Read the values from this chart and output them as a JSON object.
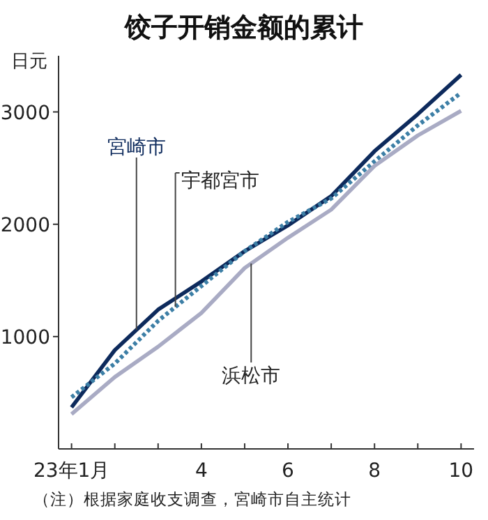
{
  "chart_data": {
    "type": "line",
    "title": "饺子开销金额的累计",
    "ylabel": "日元",
    "x": [
      1,
      2,
      3,
      4,
      5,
      6,
      7,
      8,
      9,
      10
    ],
    "xlim": [
      0.7,
      10.3
    ],
    "ylim": [
      0,
      3500
    ],
    "xticks": [
      {
        "value": 1,
        "label": "23年1月"
      },
      {
        "value": 2,
        "label": null
      },
      {
        "value": 3,
        "label": null
      },
      4,
      {
        "value": 5,
        "label": null
      },
      6,
      {
        "value": 7,
        "label": null
      },
      8,
      {
        "value": 9,
        "label": null
      },
      10
    ],
    "yticks": [
      1000,
      2000,
      3000
    ],
    "grid": false,
    "legend": false,
    "marker": "none",
    "series": [
      {
        "name": "宮崎市",
        "color": "#0d2a5c",
        "line_style": "solid",
        "values": [
          370,
          880,
          1240,
          1490,
          1760,
          1990,
          2250,
          2650,
          2980,
          3330
        ]
      },
      {
        "name": "宇都宮市",
        "color": "#3d7fa6",
        "line_style": "dotted",
        "values": [
          460,
          760,
          1140,
          1450,
          1760,
          2020,
          2230,
          2560,
          2880,
          3170
        ]
      },
      {
        "name": "浜松市",
        "color": "#a9abc4",
        "line_style": "solid",
        "values": [
          310,
          640,
          910,
          1210,
          1610,
          1880,
          2130,
          2520,
          2790,
          3010
        ]
      }
    ],
    "annotations": [
      "（注）根据家庭收支调查，宮崎市自主统计"
    ]
  }
}
